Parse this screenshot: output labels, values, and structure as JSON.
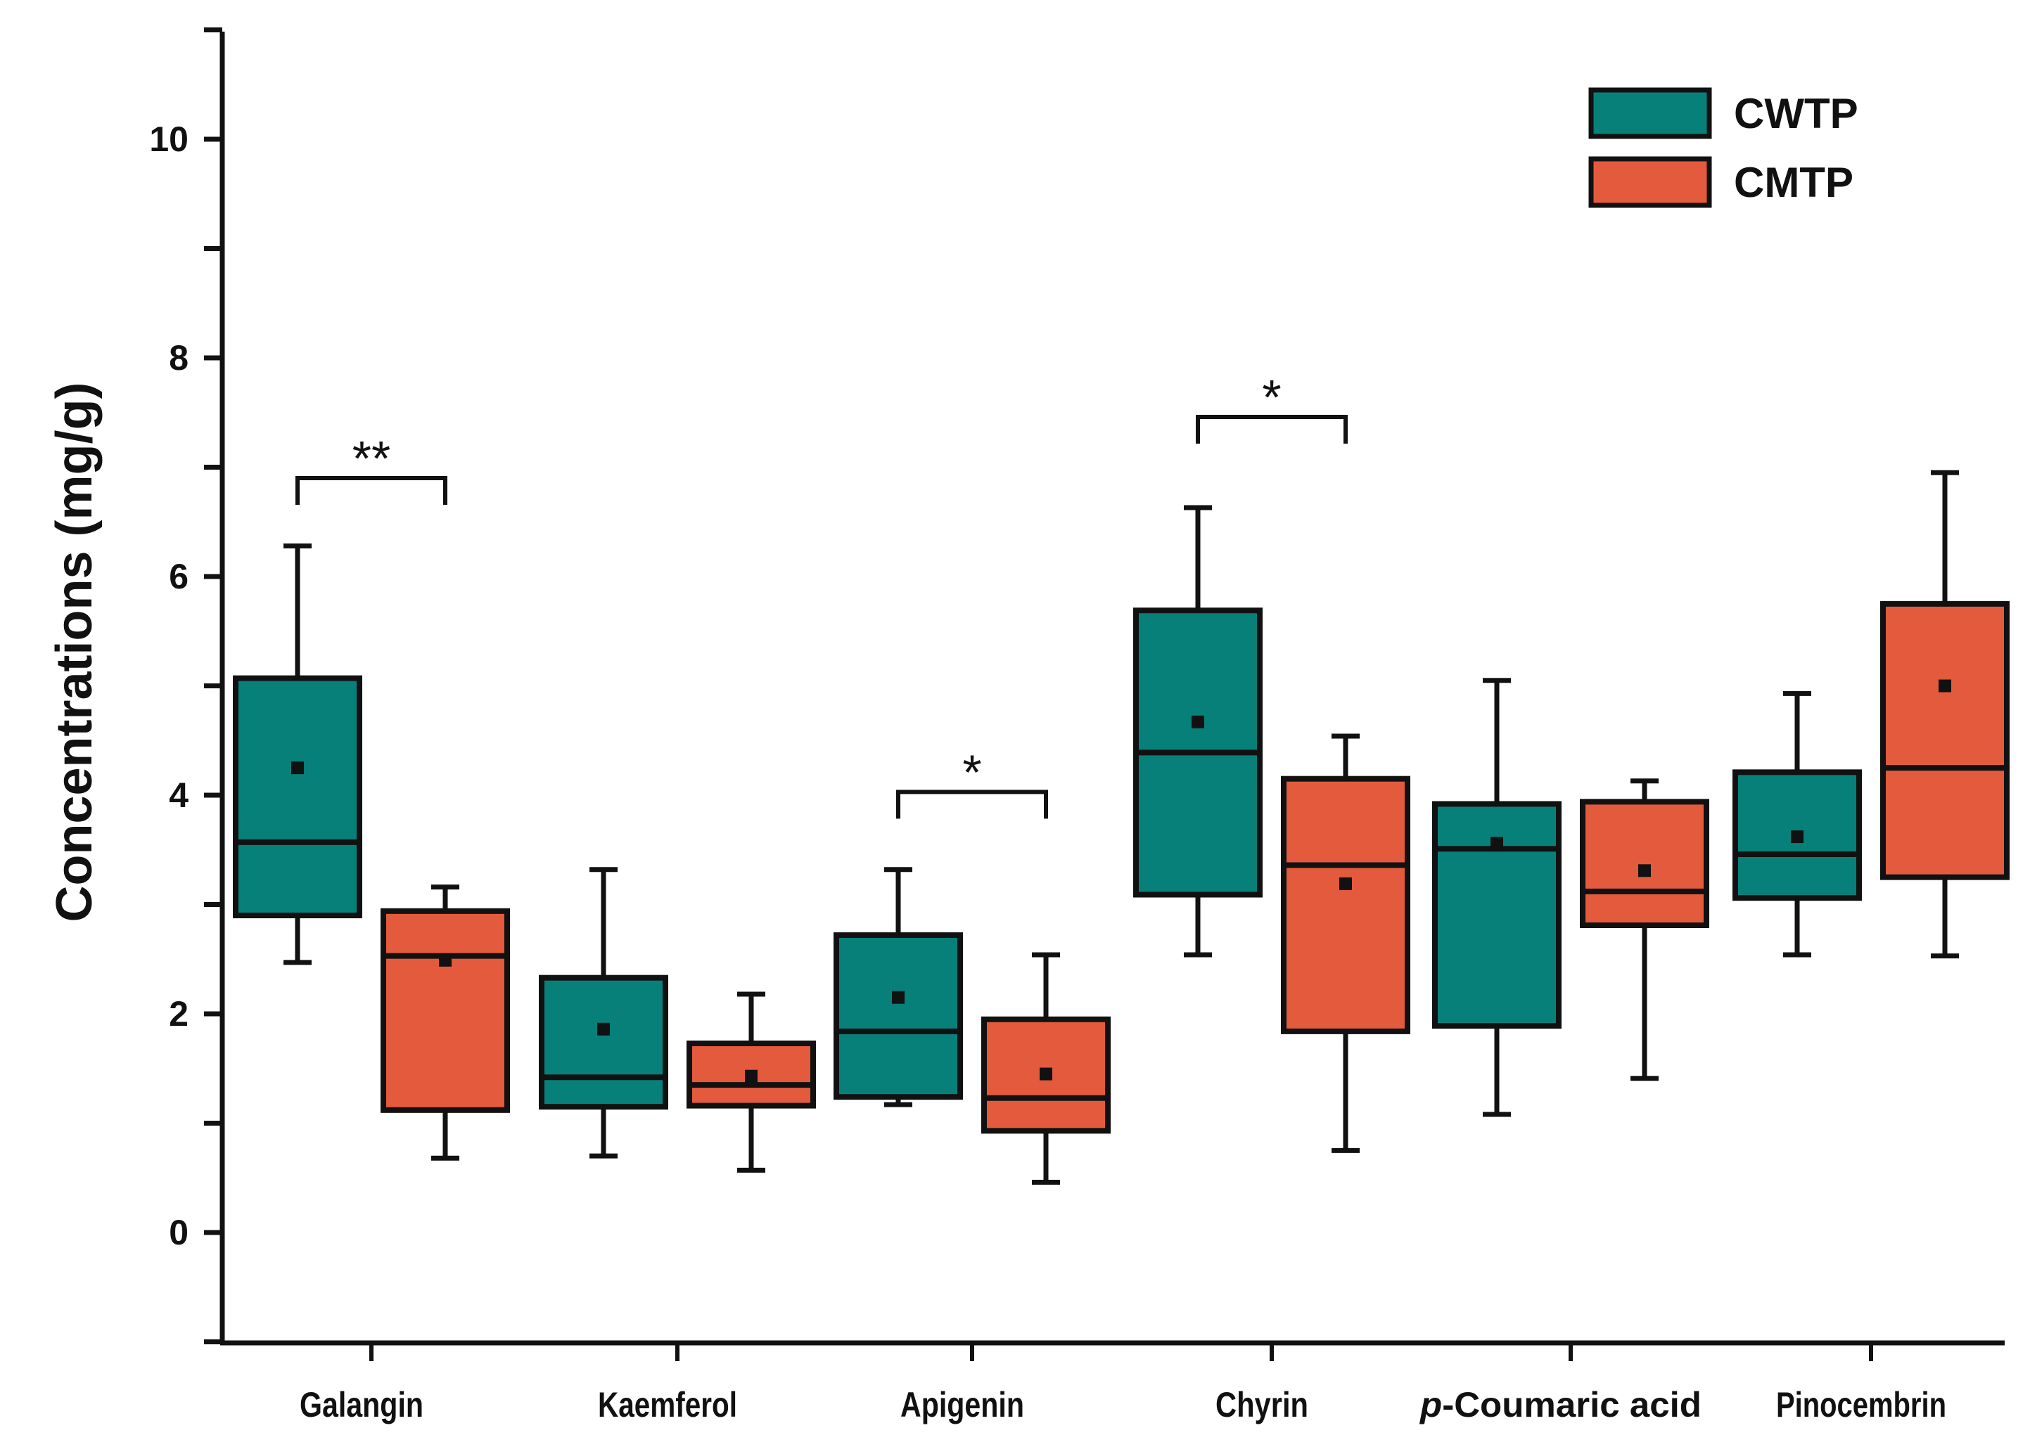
{
  "chart_data": {
    "type": "boxplot",
    "ylabel": "Concentrations (mg/g)",
    "xlabel": "",
    "ylim": [
      -1,
      11
    ],
    "yticks": [
      0,
      2,
      4,
      6,
      8,
      10
    ],
    "categories": [
      "Galangin",
      "Kaemferol",
      "Apigenin",
      "Chyrin",
      "p-Coumaric acid",
      "Pinocembrin"
    ],
    "category_labels": [
      {
        "prefix": "",
        "name": "Galangin"
      },
      {
        "prefix": "",
        "name": "Kaemferol"
      },
      {
        "prefix": "",
        "name": "Apigenin"
      },
      {
        "prefix": "",
        "name": "Chyrin"
      },
      {
        "prefix": "p",
        "name": "-Coumaric acid"
      },
      {
        "prefix": "",
        "name": "Pinocembrin"
      }
    ],
    "legend": {
      "position": "top-right"
    },
    "series": [
      {
        "name": "CWTP",
        "color": "#07807a",
        "boxes": [
          {
            "min": 2.47,
            "q1": 2.9,
            "median": 3.57,
            "q3": 5.07,
            "max": 6.28,
            "mean": 4.25
          },
          {
            "min": 0.7,
            "q1": 1.15,
            "median": 1.42,
            "q3": 2.33,
            "max": 3.32,
            "mean": 1.86
          },
          {
            "min": 1.17,
            "q1": 1.24,
            "median": 1.84,
            "q3": 2.72,
            "max": 3.32,
            "mean": 2.15
          },
          {
            "min": 2.54,
            "q1": 3.09,
            "median": 4.39,
            "q3": 5.69,
            "max": 6.63,
            "mean": 4.67
          },
          {
            "min": 1.08,
            "q1": 1.89,
            "median": 3.51,
            "q3": 3.92,
            "max": 5.05,
            "mean": 3.56
          },
          {
            "min": 2.54,
            "q1": 3.06,
            "median": 3.46,
            "q3": 4.21,
            "max": 4.93,
            "mean": 3.62
          }
        ]
      },
      {
        "name": "CMTP",
        "color": "#e45a3c",
        "boxes": [
          {
            "min": 0.68,
            "q1": 1.12,
            "median": 2.53,
            "q3": 2.94,
            "max": 3.16,
            "mean": 2.49
          },
          {
            "min": 0.57,
            "q1": 1.16,
            "median": 1.35,
            "q3": 1.73,
            "max": 2.18,
            "mean": 1.43
          },
          {
            "min": 0.46,
            "q1": 0.93,
            "median": 1.23,
            "q3": 1.95,
            "max": 2.54,
            "mean": 1.45
          },
          {
            "min": 0.75,
            "q1": 1.84,
            "median": 3.36,
            "q3": 4.15,
            "max": 4.54,
            "mean": 3.19
          },
          {
            "min": 1.41,
            "q1": 2.81,
            "median": 3.12,
            "q3": 3.94,
            "max": 4.13,
            "mean": 3.31
          },
          {
            "min": 2.53,
            "q1": 3.25,
            "median": 4.25,
            "q3": 5.75,
            "max": 6.95,
            "mean": 5.0
          }
        ]
      }
    ],
    "significance": [
      {
        "category_index": 0,
        "label": "**",
        "y": 6.9
      },
      {
        "category_index": 2,
        "label": "*",
        "y": 4.03
      },
      {
        "category_index": 3,
        "label": "*",
        "y": 7.46
      }
    ]
  }
}
